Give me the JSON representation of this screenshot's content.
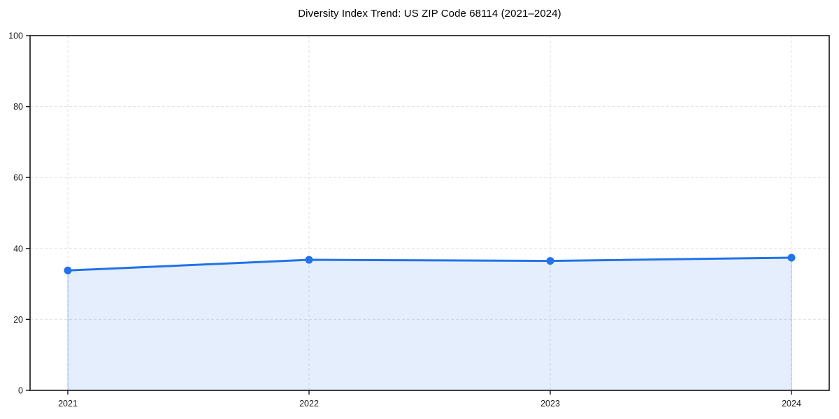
{
  "chart_data": {
    "type": "line",
    "title": "Diversity Index Trend: US ZIP Code 68114 (2021–2024)",
    "categories": [
      "2021",
      "2022",
      "2023",
      "2024"
    ],
    "series": [
      {
        "name": "Diversity Index",
        "values": [
          33.8,
          36.8,
          36.5,
          37.4
        ]
      }
    ],
    "xlabel": "",
    "ylabel": "",
    "ylim": [
      0,
      100
    ],
    "yticks": [
      0,
      20,
      40,
      60,
      80,
      100
    ],
    "grid": "both",
    "grid_style": "dashed",
    "legend_position": "none",
    "marker": "circle",
    "area_fill_to_zero": true,
    "colors": {
      "line": "#2272e8",
      "marker": "#2272e8",
      "fill": "#2272e8",
      "fill_opacity": 0.12,
      "fill_edge_opacity": 0.25,
      "grid": "#e0e0e0",
      "spine": "#141414",
      "tick_text": "#1a1a1a",
      "title_text": "#000000",
      "background": "#ffffff"
    }
  }
}
